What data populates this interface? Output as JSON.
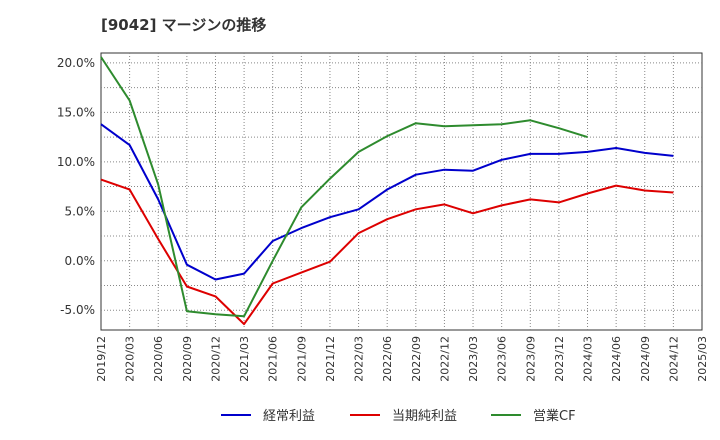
{
  "chart_data": {
    "type": "line",
    "title": "[9042]  マージンの推移",
    "x": [
      "2019/12",
      "2020/03",
      "2020/06",
      "2020/09",
      "2020/12",
      "2021/03",
      "2021/06",
      "2021/09",
      "2021/12",
      "2022/03",
      "2022/06",
      "2022/09",
      "2022/12",
      "2023/03",
      "2023/06",
      "2023/09",
      "2023/12",
      "2024/03",
      "2024/06",
      "2024/09",
      "2024/12",
      "2025/03"
    ],
    "ylim": [
      -7.0,
      21.0
    ],
    "yticks": [
      -5.0,
      0.0,
      5.0,
      10.0,
      15.0,
      20.0
    ],
    "ytick_labels": [
      "-5.0%",
      "0.0%",
      "5.0%",
      "10.0%",
      "15.0%",
      "20.0%"
    ],
    "grid": true,
    "legend_position": "bottom",
    "series": [
      {
        "name": "経常利益",
        "color": "#0000cc",
        "values": [
          13.8,
          11.7,
          6.2,
          -0.4,
          -1.9,
          -1.3,
          2.0,
          3.3,
          4.4,
          5.2,
          7.2,
          8.7,
          9.2,
          9.1,
          10.2,
          10.8,
          10.8,
          11.0,
          11.4,
          10.9,
          10.6,
          null
        ]
      },
      {
        "name": "当期純利益",
        "color": "#dd0000",
        "values": [
          8.2,
          7.2,
          2.2,
          -2.6,
          -3.6,
          -6.4,
          -2.3,
          -1.2,
          -0.1,
          2.8,
          4.2,
          5.2,
          5.7,
          4.8,
          5.6,
          6.2,
          5.9,
          6.8,
          7.6,
          7.1,
          6.9,
          null
        ]
      },
      {
        "name": "営業CF",
        "color": "#2e8b2e",
        "values": [
          20.6,
          16.2,
          7.7,
          -5.1,
          -5.4,
          -5.6,
          0.0,
          5.4,
          8.3,
          11.0,
          12.6,
          13.9,
          13.6,
          13.7,
          13.8,
          14.2,
          13.4,
          12.5,
          null,
          null,
          null,
          null
        ]
      }
    ]
  }
}
